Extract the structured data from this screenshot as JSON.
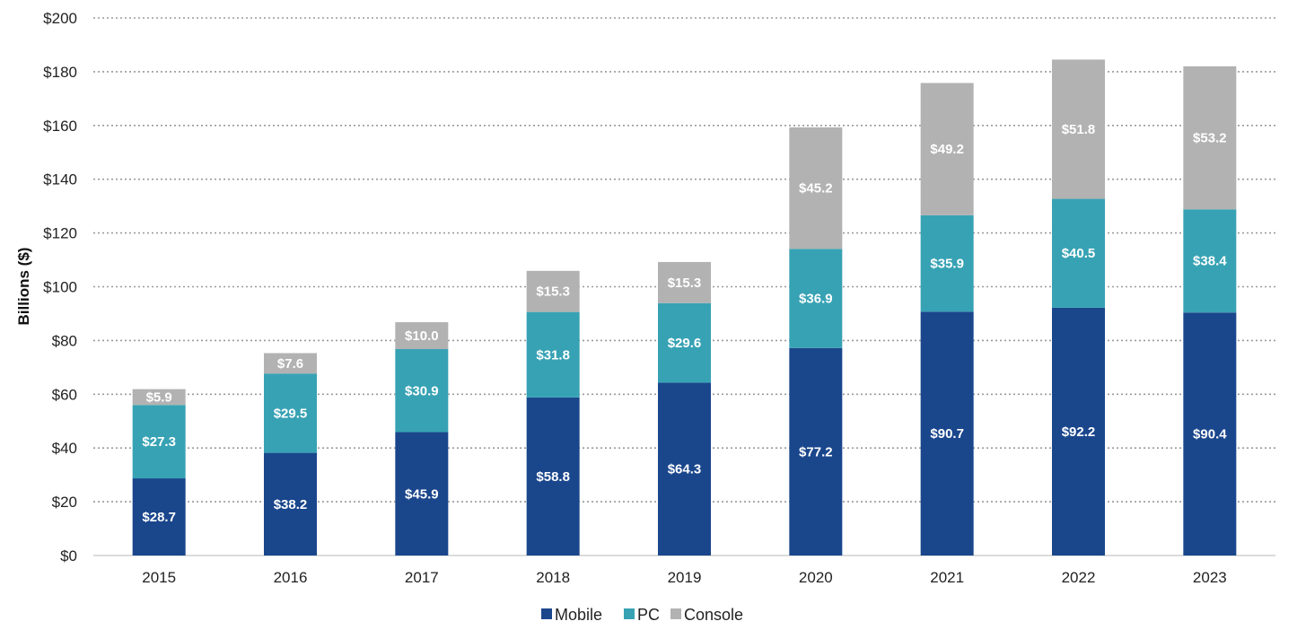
{
  "chart_data": {
    "type": "bar",
    "stacked": true,
    "title": "",
    "xlabel": "",
    "ylabel": "Billions ($)",
    "ylim": [
      0,
      200
    ],
    "ytick_step": 20,
    "ytick_prefix": "$",
    "value_prefix": "$",
    "grid": true,
    "legend_position": "bottom",
    "categories": [
      "2015",
      "2016",
      "2017",
      "2018",
      "2019",
      "2020",
      "2021",
      "2022",
      "2023"
    ],
    "series": [
      {
        "name": "Mobile",
        "color": "#1a468c",
        "values": [
          28.7,
          38.2,
          45.9,
          58.8,
          64.3,
          77.2,
          90.7,
          92.2,
          90.4
        ]
      },
      {
        "name": "PC",
        "color": "#37a2b4",
        "values": [
          27.3,
          29.5,
          30.9,
          31.8,
          29.6,
          36.9,
          35.9,
          40.5,
          38.4
        ]
      },
      {
        "name": "Console",
        "color": "#b2b2b2",
        "values": [
          5.9,
          7.6,
          10.0,
          15.3,
          15.3,
          45.2,
          49.2,
          51.8,
          53.2
        ]
      }
    ]
  }
}
